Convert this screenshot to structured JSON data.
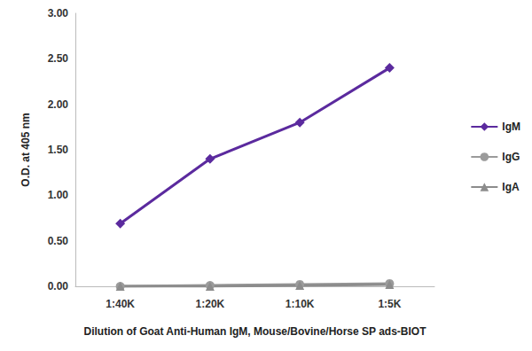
{
  "chart_data": {
    "type": "line",
    "x_label": "Dilution of Goat Anti-Human IgM, Mouse/Bovine/Horse SP ads-BIOT",
    "y_label": "O.D. at 405 nm",
    "categories": [
      "1:40K",
      "1:20K",
      "1:10K",
      "1:5K"
    ],
    "series": [
      {
        "name": "IgM",
        "color": "#5b2a9e",
        "marker": "diamond",
        "values": [
          0.69,
          1.4,
          1.8,
          2.4
        ]
      },
      {
        "name": "IgG",
        "color": "#9b9b9b",
        "marker": "circle",
        "values": [
          0.0,
          0.01,
          0.02,
          0.03
        ]
      },
      {
        "name": "IgA",
        "color": "#8c8c8c",
        "marker": "triangle",
        "values": [
          0.0,
          0.0,
          0.01,
          0.02
        ]
      }
    ],
    "ylim": [
      0,
      3
    ],
    "yticks": [
      {
        "value": 0,
        "label": "0.00"
      },
      {
        "value": 0.5,
        "label": "0.50"
      },
      {
        "value": 1,
        "label": "1.00"
      },
      {
        "value": 1.5,
        "label": "1.50"
      },
      {
        "value": 2,
        "label": "2.00"
      },
      {
        "value": 2.5,
        "label": "2.50"
      },
      {
        "value": 3,
        "label": "3.00"
      }
    ],
    "grid": false,
    "legend": "right"
  }
}
